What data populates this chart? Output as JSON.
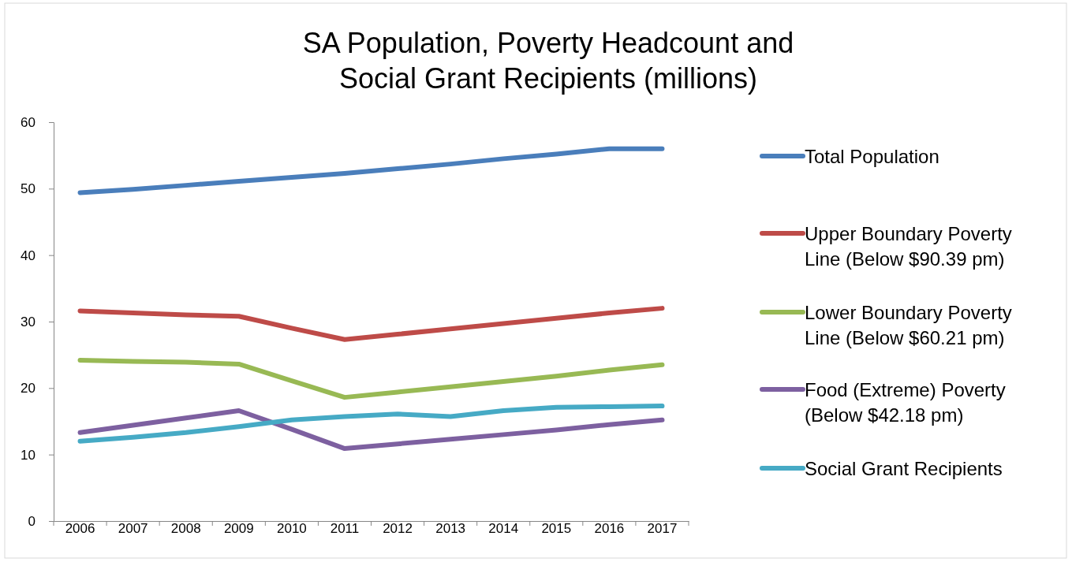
{
  "chart_data": {
    "type": "line",
    "title": "SA Population, Poverty Headcount and\nSocial Grant Recipients (millions)",
    "categories": [
      "2006",
      "2007",
      "2008",
      "2009",
      "2010",
      "2011",
      "2012",
      "2013",
      "2014",
      "2015",
      "2016",
      "2017"
    ],
    "ylim": [
      0,
      60
    ],
    "yticks": [
      0,
      10,
      20,
      30,
      40,
      50,
      60
    ],
    "grid": false,
    "legend": "right",
    "marker": "none",
    "line_style": "solid",
    "series": [
      {
        "name": "Total Population",
        "color": "#4a7ebb",
        "values": [
          49.4,
          49.9,
          50.5,
          51.1,
          51.7,
          52.3,
          53.0,
          53.7,
          54.5,
          55.2,
          56.0,
          56.0
        ]
      },
      {
        "name": "Upper Boundary Poverty Line (Below $90.39 pm)",
        "color": "#be4b48",
        "values": [
          31.6,
          31.3,
          31.0,
          30.8,
          29.0,
          27.3,
          28.1,
          28.9,
          29.7,
          30.5,
          31.3,
          32.0
        ]
      },
      {
        "name": "Lower Boundary Poverty Line (Below $60.21 pm)",
        "color": "#98b954",
        "values": [
          24.2,
          24.0,
          23.9,
          23.6,
          21.1,
          18.6,
          19.4,
          20.2,
          21.0,
          21.8,
          22.7,
          23.5
        ]
      },
      {
        "name": "Food (Extreme) Poverty (Below $42.18 pm)",
        "color": "#7d60a0",
        "values": [
          13.3,
          14.4,
          15.5,
          16.6,
          13.8,
          10.9,
          11.6,
          12.3,
          13.0,
          13.7,
          14.5,
          15.2
        ]
      },
      {
        "name": "Social Grant Recipients",
        "color": "#46aac5",
        "values": [
          12.0,
          12.6,
          13.3,
          14.2,
          15.2,
          15.7,
          16.1,
          15.7,
          16.6,
          17.1,
          17.2,
          17.3
        ]
      }
    ]
  }
}
